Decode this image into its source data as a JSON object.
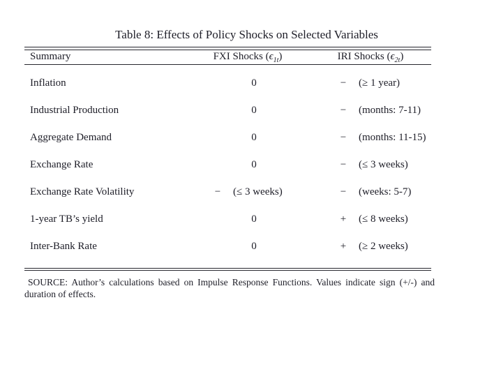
{
  "colors": {
    "background": "#ffffff",
    "ink": "#1d1d27"
  },
  "title": "Table 8: Effects of Policy Shocks on Selected Variables",
  "header": {
    "summary": "Summary",
    "fxi": {
      "pre": "FXI Shocks (",
      "sym": "ϵ",
      "sub": "1t",
      "post": ")"
    },
    "iri": {
      "pre": "IRI Shocks (",
      "sym": "ϵ",
      "sub": "2t",
      "post": ")"
    }
  },
  "rows": [
    {
      "label": "Inflation",
      "fxi": {
        "sign": "0",
        "duration": ""
      },
      "iri": {
        "sign": "−",
        "duration": "(≥ 1 year)"
      }
    },
    {
      "label": "Industrial Production",
      "fxi": {
        "sign": "0",
        "duration": ""
      },
      "iri": {
        "sign": "−",
        "duration": "(months: 7-11)"
      }
    },
    {
      "label": "Aggregate Demand",
      "fxi": {
        "sign": "0",
        "duration": ""
      },
      "iri": {
        "sign": "−",
        "duration": "(months: 11-15)"
      }
    },
    {
      "label": "Exchange Rate",
      "fxi": {
        "sign": "0",
        "duration": ""
      },
      "iri": {
        "sign": "−",
        "duration": "(≤ 3 weeks)"
      }
    },
    {
      "label": "Exchange Rate Volatility",
      "fxi": {
        "sign": "−",
        "duration": "(≤ 3 weeks)"
      },
      "iri": {
        "sign": "−",
        "duration": "(weeks: 5-7)"
      }
    },
    {
      "label": "1-year TB’s yield",
      "fxi": {
        "sign": "0",
        "duration": ""
      },
      "iri": {
        "sign": "+",
        "duration": "(≤ 8 weeks)"
      }
    },
    {
      "label": "Inter-Bank Rate",
      "fxi": {
        "sign": "0",
        "duration": ""
      },
      "iri": {
        "sign": "+",
        "duration": "(≥ 2 weeks)"
      }
    }
  ],
  "note": {
    "lines": [
      "SOURCE: Author’s calculations based on Impulse Response Functions. Values indicate sign (+/-) and",
      "duration of effects."
    ]
  }
}
